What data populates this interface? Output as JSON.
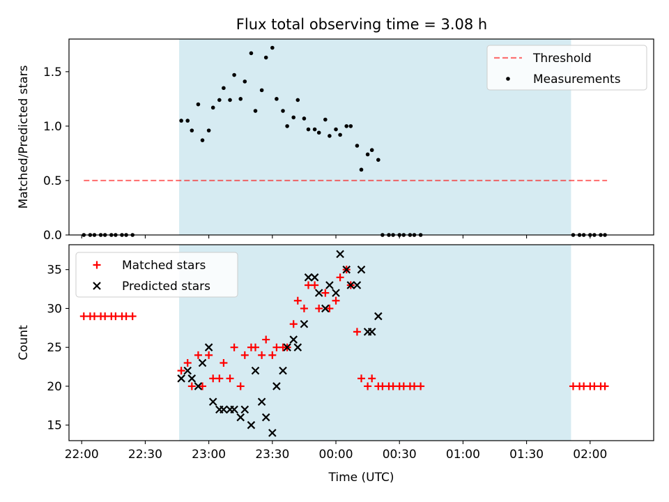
{
  "title": "Flux total observing time = 3.08 h",
  "colors": {
    "shade": "#add8e6",
    "threshold": "#ff0000",
    "measurement": "#000000",
    "matched": "#ff0000",
    "predicted": "#000000"
  },
  "chart_data": [
    {
      "type": "scatter",
      "panel": "top",
      "title": "Flux total observing time = 3.08 h",
      "xlabel": "",
      "ylabel": "Matched/Predicted stars",
      "xlim": [
        "21:54",
        "02:30"
      ],
      "ylim": [
        0,
        1.8
      ],
      "xticks": [
        "22:00",
        "22:30",
        "23:00",
        "23:30",
        "00:00",
        "00:30",
        "01:00",
        "01:30",
        "02:00"
      ],
      "yticks": [
        "0.0",
        "0.5",
        "1.0",
        "1.5"
      ],
      "shaded_interval": [
        "22:46",
        "01:51"
      ],
      "legend_position": "upper right",
      "threshold": {
        "name": "Threshold",
        "style": "dashed",
        "value": 0.5,
        "x": [
          "22:01",
          "02:08"
        ]
      },
      "series": [
        {
          "name": "Measurements",
          "marker": "dot",
          "x": [
            "22:01",
            "22:04",
            "22:06",
            "22:09",
            "22:11",
            "22:14",
            "22:16",
            "22:19",
            "22:21",
            "22:24",
            "22:47",
            "22:50",
            "22:52",
            "22:55",
            "22:57",
            "23:00",
            "23:02",
            "23:05",
            "23:07",
            "23:10",
            "23:12",
            "23:15",
            "23:17",
            "23:20",
            "23:22",
            "23:25",
            "23:27",
            "23:30",
            "23:32",
            "23:35",
            "23:37",
            "23:40",
            "23:42",
            "23:45",
            "23:47",
            "23:50",
            "23:52",
            "23:55",
            "23:57",
            "00:00",
            "00:02",
            "00:05",
            "00:07",
            "00:10",
            "00:12",
            "00:15",
            "00:17",
            "00:20",
            "00:22",
            "00:25",
            "00:27",
            "00:30",
            "00:32",
            "00:35",
            "00:37",
            "00:40",
            "01:52",
            "01:55",
            "01:57",
            "02:00",
            "02:02",
            "02:05",
            "02:07"
          ],
          "y": [
            0,
            0,
            0,
            0,
            0,
            0,
            0,
            0,
            0,
            0,
            1.05,
            1.05,
            0.96,
            1.2,
            0.87,
            0.96,
            1.17,
            1.24,
            1.35,
            1.24,
            1.47,
            1.25,
            1.41,
            1.67,
            1.14,
            1.33,
            1.63,
            1.72,
            1.25,
            1.14,
            1.0,
            1.08,
            1.24,
            1.07,
            0.97,
            0.97,
            0.94,
            1.06,
            0.91,
            0.97,
            0.92,
            1.0,
            1.0,
            0.82,
            0.6,
            0.74,
            0.78,
            0.69,
            0,
            0,
            0,
            0,
            0,
            0,
            0,
            0,
            0,
            0,
            0,
            0,
            0,
            0,
            0
          ]
        }
      ]
    },
    {
      "type": "scatter",
      "panel": "bottom",
      "xlabel": "Time (UTC)",
      "ylabel": "Count",
      "xlim": [
        "21:54",
        "02:30"
      ],
      "ylim": [
        13,
        38.2
      ],
      "xticks": [
        "22:00",
        "22:30",
        "23:00",
        "23:30",
        "00:00",
        "00:30",
        "01:00",
        "01:30",
        "02:00"
      ],
      "yticks": [
        "15",
        "20",
        "25",
        "30",
        "35"
      ],
      "shaded_interval": [
        "22:46",
        "01:51"
      ],
      "legend_position": "upper left",
      "series": [
        {
          "name": "Matched stars",
          "marker": "+",
          "x": [
            "22:01",
            "22:04",
            "22:06",
            "22:09",
            "22:11",
            "22:14",
            "22:16",
            "22:19",
            "22:21",
            "22:24",
            "22:47",
            "22:50",
            "22:52",
            "22:55",
            "22:57",
            "23:00",
            "23:02",
            "23:05",
            "23:07",
            "23:10",
            "23:12",
            "23:15",
            "23:17",
            "23:20",
            "23:22",
            "23:25",
            "23:27",
            "23:30",
            "23:32",
            "23:35",
            "23:37",
            "23:40",
            "23:42",
            "23:45",
            "23:47",
            "23:50",
            "23:52",
            "23:55",
            "23:57",
            "00:00",
            "00:02",
            "00:05",
            "00:07",
            "00:10",
            "00:12",
            "00:15",
            "00:17",
            "00:20",
            "00:22",
            "00:25",
            "00:27",
            "00:30",
            "00:32",
            "00:35",
            "00:37",
            "00:40",
            "01:52",
            "01:55",
            "01:57",
            "02:00",
            "02:02",
            "02:05",
            "02:07"
          ],
          "y": [
            29,
            29,
            29,
            29,
            29,
            29,
            29,
            29,
            29,
            29,
            22,
            23,
            20,
            24,
            20,
            24,
            21,
            21,
            23,
            21,
            25,
            20,
            24,
            25,
            25,
            24,
            26,
            24,
            25,
            25,
            25,
            28,
            31,
            30,
            33,
            33,
            30,
            32,
            30,
            31,
            34,
            35,
            33,
            27,
            21,
            20,
            21,
            20,
            20,
            20,
            20,
            20,
            20,
            20,
            20,
            20,
            20,
            20,
            20,
            20,
            20,
            20,
            20
          ]
        },
        {
          "name": "Predicted stars",
          "marker": "x",
          "x": [
            "22:47",
            "22:50",
            "22:52",
            "22:55",
            "22:57",
            "23:00",
            "23:02",
            "23:05",
            "23:07",
            "23:10",
            "23:12",
            "23:15",
            "23:17",
            "23:20",
            "23:22",
            "23:25",
            "23:27",
            "23:30",
            "23:32",
            "23:35",
            "23:37",
            "23:40",
            "23:42",
            "23:45",
            "23:47",
            "23:50",
            "23:52",
            "23:55",
            "23:57",
            "00:00",
            "00:02",
            "00:05",
            "00:07",
            "00:10",
            "00:12",
            "00:15",
            "00:17",
            "00:20"
          ],
          "y": [
            21,
            22,
            21,
            20,
            23,
            25,
            18,
            17,
            17,
            17,
            17,
            16,
            17,
            15,
            22,
            18,
            16,
            14,
            20,
            22,
            25,
            26,
            25,
            28,
            34,
            34,
            32,
            30,
            33,
            32,
            37,
            35,
            33,
            33,
            35,
            27,
            27,
            29
          ]
        }
      ]
    }
  ]
}
